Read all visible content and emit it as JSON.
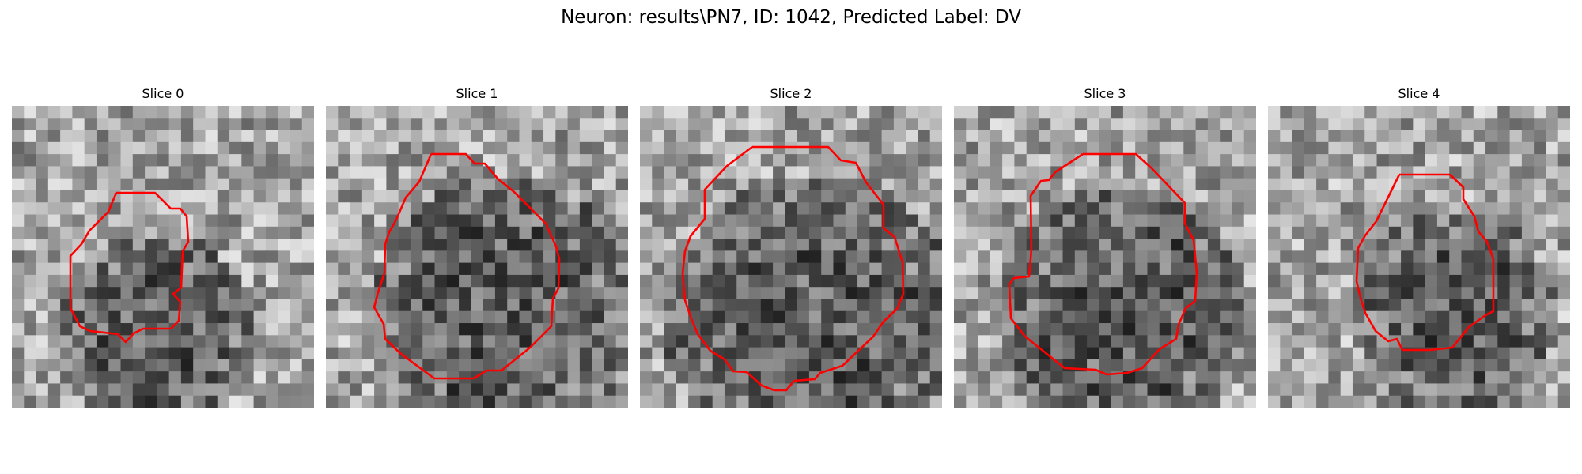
{
  "figure": {
    "title": "Neuron: results\\PN7, ID: 1042, Predicted Label: DV"
  },
  "panels": [
    {
      "title": "Slice 0"
    },
    {
      "title": "Slice 1"
    },
    {
      "title": "Slice 2"
    },
    {
      "title": "Slice 3"
    },
    {
      "title": "Slice 4"
    }
  ],
  "style": {
    "contour_color": "#ff0000",
    "colormap": "gray"
  }
}
